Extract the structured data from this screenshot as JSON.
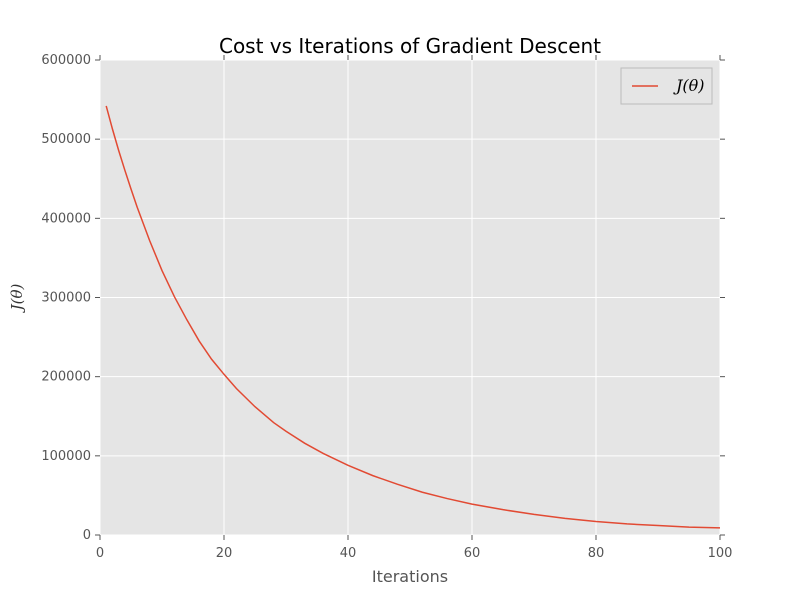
{
  "chart_data": {
    "type": "line",
    "title": "Cost vs Iterations of Gradient Descent",
    "xlabel": "Iterations",
    "ylabel": "J(θ)",
    "xlim": [
      0,
      100
    ],
    "ylim": [
      0,
      600000
    ],
    "xticks": [
      "0",
      "20",
      "40",
      "60",
      "80",
      "100"
    ],
    "yticks": [
      "0",
      "100000",
      "200000",
      "300000",
      "400000",
      "500000",
      "600000"
    ],
    "grid": true,
    "legend_position": "top-right",
    "series": [
      {
        "name": "J(θ)",
        "color": "#e24a33",
        "x": [
          1,
          2,
          3,
          4,
          5,
          6,
          8,
          10,
          12,
          14,
          16,
          18,
          20,
          22,
          25,
          28,
          30,
          33,
          36,
          40,
          44,
          48,
          52,
          56,
          60,
          65,
          70,
          75,
          80,
          85,
          90,
          95,
          100
        ],
        "y": [
          542000,
          513000,
          486000,
          461000,
          437000,
          414000,
          372000,
          334000,
          301000,
          272000,
          245000,
          222000,
          203000,
          185000,
          162000,
          142000,
          131000,
          116000,
          103000,
          88000,
          75000,
          64000,
          54000,
          46000,
          39000,
          32000,
          26000,
          21000,
          17000,
          14000,
          12000,
          10000,
          9000
        ]
      }
    ]
  }
}
